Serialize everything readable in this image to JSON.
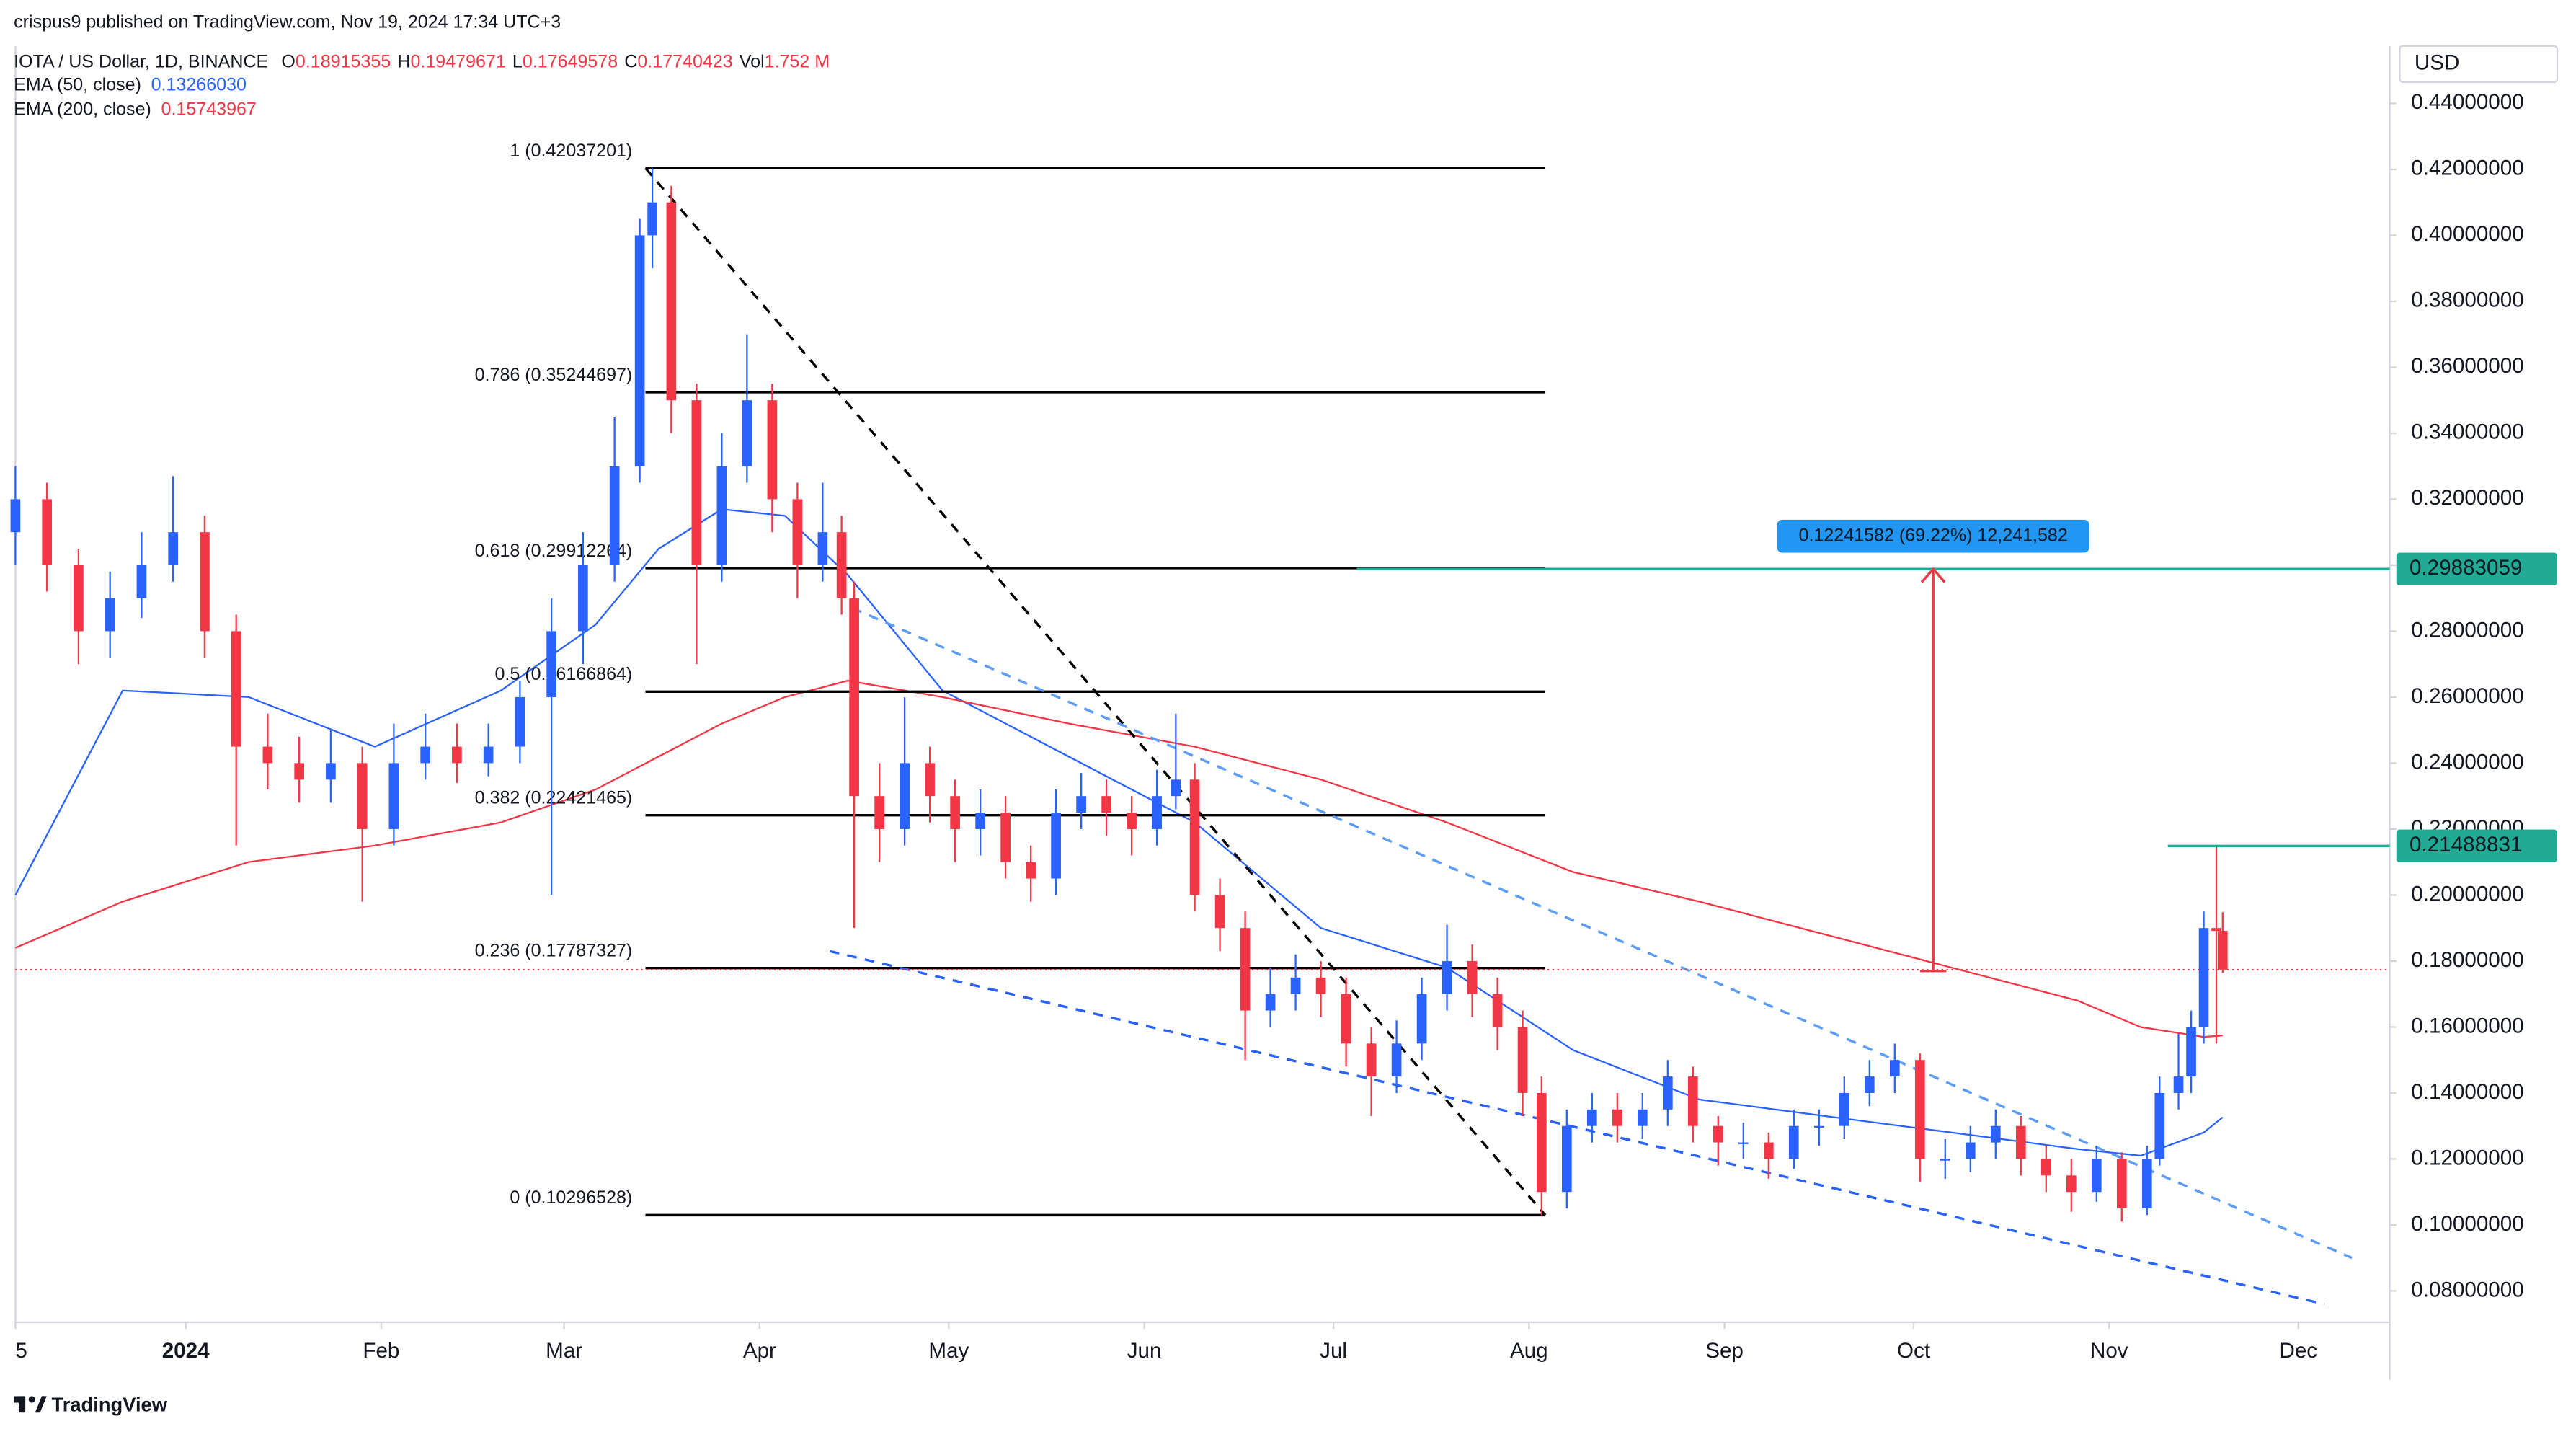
{
  "header": {
    "publisher": "crispus9 published on TradingView.com, Nov 19, 2024 17:34 UTC+3",
    "footer_brand": "TradingView"
  },
  "chart_data": {
    "type": "candlestick",
    "title": "IOTA / US Dollar, 1D, BINANCE",
    "legend_labels": {
      "open": "O",
      "high": "H",
      "low": "L",
      "close": "C",
      "volume": "Vol"
    },
    "volume_label": "1.752 M",
    "currency": "USD",
    "up_color": "#2962ff",
    "down_color": "#f23645",
    "x": [
      -27,
      -22,
      -17,
      -12,
      -7,
      -2,
      3,
      8,
      13,
      18,
      23,
      28,
      33,
      38,
      43,
      48,
      53,
      58,
      63,
      68,
      72,
      74,
      77,
      81,
      85,
      89,
      93,
      97,
      101,
      104,
      106,
      110,
      114,
      118,
      122,
      126,
      130,
      134,
      138,
      142,
      146,
      150,
      154,
      157,
      160,
      164,
      168,
      172,
      176,
      180,
      184,
      188,
      192,
      196,
      200,
      204,
      208,
      212,
      215,
      219,
      223,
      227,
      231,
      235,
      239,
      243,
      247,
      251,
      255,
      259,
      263,
      267,
      271,
      275,
      279,
      283,
      287,
      291,
      295,
      299,
      303,
      307,
      311,
      313,
      316,
      318,
      320,
      322,
      323
    ],
    "open": [
      0.31,
      0.32,
      0.3,
      0.28,
      0.29,
      0.3,
      0.31,
      0.28,
      0.245,
      0.24,
      0.235,
      0.24,
      0.22,
      0.24,
      0.245,
      0.24,
      0.245,
      0.26,
      0.28,
      0.3,
      0.33,
      0.4,
      0.41,
      0.35,
      0.3,
      0.33,
      0.35,
      0.32,
      0.3,
      0.31,
      0.29,
      0.23,
      0.22,
      0.24,
      0.23,
      0.22,
      0.225,
      0.21,
      0.205,
      0.225,
      0.23,
      0.225,
      0.22,
      0.23,
      0.235,
      0.2,
      0.19,
      0.165,
      0.17,
      0.175,
      0.17,
      0.155,
      0.145,
      0.155,
      0.17,
      0.18,
      0.17,
      0.16,
      0.14,
      0.11,
      0.13,
      0.135,
      0.13,
      0.135,
      0.145,
      0.13,
      0.125,
      0.125,
      0.12,
      0.13,
      0.13,
      0.14,
      0.145,
      0.15,
      0.12,
      0.12,
      0.125,
      0.13,
      0.12,
      0.115,
      0.11,
      0.12,
      0.105,
      0.12,
      0.14,
      0.145,
      0.16,
      0.19,
      0.18915355
    ],
    "high": [
      0.33,
      0.325,
      0.305,
      0.298,
      0.31,
      0.327,
      0.315,
      0.285,
      0.255,
      0.248,
      0.25,
      0.245,
      0.252,
      0.255,
      0.252,
      0.252,
      0.265,
      0.29,
      0.31,
      0.345,
      0.405,
      0.42037201,
      0.415,
      0.355,
      0.34,
      0.37,
      0.355,
      0.325,
      0.325,
      0.315,
      0.295,
      0.24,
      0.26,
      0.245,
      0.235,
      0.232,
      0.23,
      0.215,
      0.232,
      0.237,
      0.235,
      0.23,
      0.238,
      0.255,
      0.24,
      0.205,
      0.195,
      0.178,
      0.182,
      0.18,
      0.175,
      0.16,
      0.162,
      0.175,
      0.191,
      0.185,
      0.175,
      0.165,
      0.145,
      0.135,
      0.14,
      0.14,
      0.14,
      0.15,
      0.148,
      0.133,
      0.131,
      0.128,
      0.135,
      0.135,
      0.145,
      0.15,
      0.155,
      0.152,
      0.126,
      0.13,
      0.135,
      0.133,
      0.124,
      0.12,
      0.124,
      0.122,
      0.124,
      0.145,
      0.158,
      0.165,
      0.195,
      0.21488831,
      0.19479671
    ],
    "low": [
      0.3,
      0.292,
      0.27,
      0.272,
      0.284,
      0.295,
      0.272,
      0.215,
      0.232,
      0.228,
      0.228,
      0.198,
      0.215,
      0.235,
      0.234,
      0.236,
      0.24,
      0.2,
      0.27,
      0.295,
      0.325,
      0.39,
      0.34,
      0.27,
      0.295,
      0.325,
      0.31,
      0.29,
      0.295,
      0.285,
      0.19,
      0.21,
      0.215,
      0.222,
      0.21,
      0.212,
      0.205,
      0.198,
      0.2,
      0.22,
      0.218,
      0.212,
      0.215,
      0.226,
      0.195,
      0.183,
      0.15,
      0.16,
      0.165,
      0.163,
      0.148,
      0.133,
      0.14,
      0.15,
      0.165,
      0.163,
      0.153,
      0.133,
      0.10296528,
      0.105,
      0.125,
      0.125,
      0.126,
      0.13,
      0.125,
      0.118,
      0.12,
      0.114,
      0.117,
      0.124,
      0.126,
      0.136,
      0.14,
      0.113,
      0.114,
      0.116,
      0.12,
      0.115,
      0.11,
      0.104,
      0.107,
      0.101,
      0.103,
      0.118,
      0.135,
      0.14,
      0.155,
      0.155,
      0.17649578
    ],
    "close": [
      0.32,
      0.3,
      0.28,
      0.29,
      0.3,
      0.31,
      0.28,
      0.245,
      0.24,
      0.235,
      0.24,
      0.22,
      0.24,
      0.245,
      0.24,
      0.245,
      0.26,
      0.28,
      0.3,
      0.33,
      0.4,
      0.41,
      0.35,
      0.3,
      0.33,
      0.35,
      0.32,
      0.3,
      0.31,
      0.29,
      0.23,
      0.22,
      0.24,
      0.23,
      0.22,
      0.225,
      0.21,
      0.205,
      0.225,
      0.23,
      0.225,
      0.22,
      0.23,
      0.235,
      0.2,
      0.19,
      0.165,
      0.17,
      0.175,
      0.17,
      0.155,
      0.145,
      0.155,
      0.17,
      0.18,
      0.17,
      0.16,
      0.14,
      0.11,
      0.13,
      0.135,
      0.13,
      0.135,
      0.145,
      0.13,
      0.125,
      0.125,
      0.12,
      0.13,
      0.13,
      0.14,
      0.145,
      0.15,
      0.12,
      0.12,
      0.125,
      0.13,
      0.12,
      0.115,
      0.11,
      0.12,
      0.105,
      0.12,
      0.14,
      0.145,
      0.16,
      0.19,
      0.18915355,
      0.17740423
    ],
    "xlim": [
      -27,
      349.5
    ],
    "xticks": [
      {
        "value": -27,
        "label": "5"
      },
      {
        "value": 0,
        "label": "2024"
      },
      {
        "value": 31,
        "label": "Feb"
      },
      {
        "value": 60,
        "label": "Mar"
      },
      {
        "value": 91,
        "label": "Apr"
      },
      {
        "value": 121,
        "label": "May"
      },
      {
        "value": 152,
        "label": "Jun"
      },
      {
        "value": 182,
        "label": "Jul"
      },
      {
        "value": 213,
        "label": "Aug"
      },
      {
        "value": 244,
        "label": "Sep"
      },
      {
        "value": 274,
        "label": "Oct"
      },
      {
        "value": 305,
        "label": "Nov"
      },
      {
        "value": 335,
        "label": "Dec"
      }
    ],
    "ylim": [
      0.0705,
      0.4574
    ],
    "yticks": [
      {
        "value": 0.08,
        "label": "0.08000000"
      },
      {
        "value": 0.1,
        "label": "0.10000000"
      },
      {
        "value": 0.12,
        "label": "0.12000000"
      },
      {
        "value": 0.14,
        "label": "0.14000000"
      },
      {
        "value": 0.16,
        "label": "0.16000000"
      },
      {
        "value": 0.18,
        "label": "0.18000000"
      },
      {
        "value": 0.2,
        "label": "0.20000000"
      },
      {
        "value": 0.22,
        "label": "0.22000000"
      },
      {
        "value": 0.24,
        "label": "0.24000000"
      },
      {
        "value": 0.26,
        "label": "0.26000000"
      },
      {
        "value": 0.28,
        "label": "0.28000000"
      },
      {
        "value": 0.3,
        "label": "0.30000000"
      },
      {
        "value": 0.32,
        "label": "0.32000000"
      },
      {
        "value": 0.34,
        "label": "0.34000000"
      },
      {
        "value": 0.36,
        "label": "0.36000000"
      },
      {
        "value": 0.38,
        "label": "0.38000000"
      },
      {
        "value": 0.4,
        "label": "0.40000000"
      },
      {
        "value": 0.42,
        "label": "0.42000000"
      },
      {
        "value": 0.44,
        "label": "0.44000000"
      }
    ],
    "grid": false,
    "indicators": [
      {
        "name": "EMA (50, close)",
        "color": "#2962ff",
        "legend_value": "0.13266030",
        "x": [
          -27,
          -10,
          10,
          30,
          50,
          65,
          75,
          85,
          95,
          105,
          120,
          140,
          160,
          180,
          200,
          220,
          240,
          260,
          280,
          300,
          310,
          320,
          323
        ],
        "values": [
          0.2,
          0.262,
          0.26,
          0.245,
          0.262,
          0.282,
          0.305,
          0.317,
          0.315,
          0.297,
          0.262,
          0.242,
          0.222,
          0.19,
          0.178,
          0.153,
          0.138,
          0.133,
          0.128,
          0.123,
          0.121,
          0.128,
          0.1326603
        ]
      },
      {
        "name": "EMA (200, close)",
        "color": "#f23645",
        "legend_value": "0.15743967",
        "x": [
          -27,
          -10,
          10,
          30,
          50,
          65,
          75,
          85,
          95,
          105,
          120,
          140,
          160,
          180,
          200,
          220,
          240,
          260,
          280,
          300,
          310,
          320,
          323
        ],
        "values": [
          0.184,
          0.198,
          0.21,
          0.215,
          0.222,
          0.232,
          0.242,
          0.252,
          0.26,
          0.265,
          0.26,
          0.252,
          0.245,
          0.235,
          0.222,
          0.207,
          0.198,
          0.188,
          0.178,
          0.168,
          0.16,
          0.157,
          0.15743967
        ]
      }
    ],
    "fib": {
      "x": [
        72.9,
        215.6
      ],
      "color": "#000000",
      "levels": [
        {
          "label": "1 (0.42037201)",
          "value": 0.42037201
        },
        {
          "label": "0.786 (0.35244697)",
          "value": 0.35244697
        },
        {
          "label": "0.618 (0.29912264)",
          "value": 0.29912264
        },
        {
          "label": "0.5 (0.26166864)",
          "value": 0.26166864
        },
        {
          "label": "0.382 (0.22421465)",
          "value": 0.22421465
        },
        {
          "label": "0.236 (0.17787327)",
          "value": 0.17787327
        },
        {
          "label": "0 (0.10296528)",
          "value": 0.10296528
        }
      ]
    },
    "trendlines": [
      {
        "color": "#000000",
        "x": [
          72.9,
          215.6
        ],
        "y": [
          0.42037201,
          0.10296528
        ]
      },
      {
        "color": "#5b9cf6",
        "x": [
          105.7,
          343.5
        ],
        "y": [
          0.287,
          0.09
        ]
      },
      {
        "color": "#2962ff",
        "x": [
          102.1,
          339.1
        ],
        "y": [
          0.183,
          0.076
        ]
      }
    ],
    "price_lines": [
      {
        "value": 0.29883059,
        "x": 185.7,
        "color": "#22ab94"
      },
      {
        "value": 0.21488831,
        "x": 314.3,
        "color": "#22ab94"
      }
    ],
    "measure": {
      "x": 277.1,
      "from": 0.177,
      "to": 0.29883059,
      "label": "0.12241582 (69.22%) 12,241,582",
      "color": "#f23645",
      "label_color": "#2196f3"
    }
  }
}
